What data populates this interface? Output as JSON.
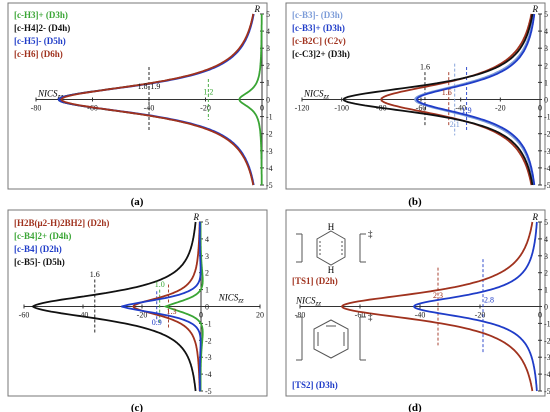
{
  "figure": {
    "panel_labels": [
      "(a)",
      "(b)",
      "(c)",
      "(d)"
    ]
  },
  "chart_data": [
    {
      "panel": "(a)",
      "type": "line",
      "xlabel": "NICSzz",
      "ylabel": "R",
      "xlim": [
        -80,
        0
      ],
      "ylim": [
        -5,
        5
      ],
      "x_ticks": [
        -80,
        -60,
        -40,
        -20,
        0
      ],
      "y_ticks": [
        -5,
        -4,
        -3,
        -2,
        -1,
        0,
        1,
        2,
        3,
        4,
        5
      ],
      "legend_position": "top-left",
      "series": [
        {
          "name": "[c-H3]+ (D3h)",
          "color": "#3aa535",
          "min_x": -8,
          "min_y": 0,
          "width": 0.55
        },
        {
          "name": "[c-H4]2- (D4h)",
          "color": "#111111",
          "min_x": -72,
          "min_y": 0,
          "width": 1.05
        },
        {
          "name": "[c-H5]- (D5h)",
          "color": "#1f3cc8",
          "min_x": -72,
          "min_y": 0,
          "width": 1.03
        },
        {
          "name": "[c-H6] (D6h)",
          "color": "#a0321e",
          "min_x": -71,
          "min_y": 0,
          "width": 1.07
        }
      ],
      "annotations": [
        {
          "text": "1.8-1.9",
          "x": -40,
          "y": 0.6,
          "color": "#111111"
        },
        {
          "text": "1.2",
          "x": -19,
          "y": 0.3,
          "color": "#3aa535"
        }
      ],
      "vlines": [
        {
          "x": -40,
          "y1": -1.9,
          "y2": 1.9,
          "color": "#111111"
        },
        {
          "x": -19,
          "y1": -1.2,
          "y2": 1.2,
          "color": "#3aa535"
        }
      ]
    },
    {
      "panel": "(b)",
      "type": "line",
      "xlabel": "NICSzz",
      "ylabel": "R",
      "xlim": [
        -120,
        0
      ],
      "ylim": [
        -5,
        5
      ],
      "x_ticks": [
        -120,
        -100,
        -80,
        -60,
        -40,
        -20,
        0
      ],
      "y_ticks": [
        -5,
        -4,
        -3,
        -2,
        -1,
        0,
        1,
        2,
        3,
        4,
        5
      ],
      "legend_position": "top-left",
      "series": [
        {
          "name": "[c-B3]- (D3h)",
          "color": "#7b9bd8",
          "min_x": -63,
          "min_y": 0,
          "width": 1.15
        },
        {
          "name": "[c-B3]+ (D3h)",
          "color": "#1f3cc8",
          "min_x": -62,
          "min_y": 0,
          "width": 1.1
        },
        {
          "name": "[c-B2C] (C2v)",
          "color": "#a0321e",
          "min_x": -80,
          "min_y": 0,
          "width": 1.2
        },
        {
          "name": "[c-C3]2+ (D3h)",
          "color": "#111111",
          "min_x": -99,
          "min_y": 0,
          "width": 1.0
        }
      ],
      "annotations": [
        {
          "text": "1.6",
          "x": -58,
          "y": 1.75,
          "color": "#111111"
        },
        {
          "text": "1.6",
          "x": -47,
          "y": 0.25,
          "color": "#a0321e"
        },
        {
          "text": "1.9",
          "x": -37,
          "y": -0.8,
          "color": "#1f3cc8"
        },
        {
          "text": "2.1",
          "x": -43,
          "y": -1.6,
          "color": "#7b9bd8"
        }
      ],
      "vlines": [
        {
          "x": -58,
          "y1": -1.6,
          "y2": 1.6,
          "color": "#111111"
        },
        {
          "x": -46,
          "y1": -1.6,
          "y2": 1.6,
          "color": "#a0321e"
        },
        {
          "x": -37,
          "y1": -1.9,
          "y2": 1.9,
          "color": "#1f3cc8"
        },
        {
          "x": -43,
          "y1": -2.1,
          "y2": 2.1,
          "color": "#7b9bd8"
        }
      ]
    },
    {
      "panel": "(c)",
      "type": "line",
      "xlabel": "NICSzz",
      "ylabel": "R",
      "xlim": [
        -60,
        20
      ],
      "ylim": [
        -5,
        5
      ],
      "x_ticks": [
        -60,
        -40,
        -20,
        0,
        20
      ],
      "y_ticks": [
        -5,
        -4,
        -3,
        -2,
        -1,
        0,
        1,
        2,
        3,
        4,
        5
      ],
      "legend_position": "top-left",
      "series": [
        {
          "name": "[H2B(μ2-H)2BH2] (D2h)",
          "color": "#a0321e",
          "min_x": -23,
          "min_y": 0,
          "width": 0.72,
          "tail": 1
        },
        {
          "name": "[c-B4]2+ (D4h)",
          "color": "#3aa535",
          "min_x": -12,
          "min_y": 0,
          "width": 0.62,
          "tail": 4
        },
        {
          "name": "[c-B4] (D2h)",
          "color": "#1f3cc8",
          "min_x": -27,
          "min_y": 0,
          "width": 0.66,
          "tail": 6
        },
        {
          "name": "[c-B5]- (D5h)",
          "color": "#111111",
          "min_x": -57,
          "min_y": 0,
          "width": 1.0,
          "tail": 3
        }
      ],
      "annotations": [
        {
          "text": "1.6",
          "x": -36,
          "y": 1.75,
          "color": "#111111"
        },
        {
          "text": "1.0",
          "x": -14,
          "y": 1.15,
          "color": "#3aa535"
        },
        {
          "text": "0.9",
          "x": -15,
          "y": -1.1,
          "color": "#1f3cc8"
        },
        {
          "text": "1.3",
          "x": -10,
          "y": -0.45,
          "color": "#a0321e"
        }
      ],
      "vlines": [
        {
          "x": -36,
          "y1": -1.6,
          "y2": 1.6,
          "color": "#111111"
        },
        {
          "x": -14,
          "y1": -1.0,
          "y2": 1.0,
          "color": "#3aa535"
        },
        {
          "x": -15,
          "y1": -0.9,
          "y2": 0.9,
          "color": "#1f3cc8"
        },
        {
          "x": -11,
          "y1": -1.3,
          "y2": 1.3,
          "color": "#a0321e"
        }
      ]
    },
    {
      "panel": "(d)",
      "type": "line",
      "xlabel": "NICSzz",
      "ylabel": "R",
      "xlim": [
        -80,
        0
      ],
      "ylim": [
        -5,
        5
      ],
      "x_ticks": [
        -80,
        -60,
        -40,
        -20,
        0
      ],
      "y_ticks": [
        -5,
        -4,
        -3,
        -2,
        -1,
        0,
        1,
        2,
        3,
        4,
        5
      ],
      "legend_position": "left",
      "series": [
        {
          "name": "[TS1] (D2h)",
          "color": "#a0321e",
          "min_x": -66,
          "min_y": 0,
          "width": 1.0
        },
        {
          "name": "[TS2] (D3h)",
          "color": "#1f3cc8",
          "min_x": -42,
          "min_y": 0,
          "width": 0.8
        }
      ],
      "annotations": [
        {
          "text": "2.3",
          "x": -34,
          "y": 0.5,
          "color": "#a0321e"
        },
        {
          "text": "2.8",
          "x": -17,
          "y": 0.25,
          "color": "#1f3cc8"
        }
      ],
      "vlines": [
        {
          "x": -34,
          "y1": -2.3,
          "y2": 2.3,
          "color": "#a0321e"
        },
        {
          "x": -19,
          "y1": -2.8,
          "y2": 2.8,
          "color": "#1f3cc8"
        }
      ],
      "structure_labels": [
        {
          "bracket_charge": "‡",
          "atoms": "H",
          "for": "[TS1] (D2h)"
        },
        {
          "bracket_charge": "‡",
          "for": "[TS2] (D3h)"
        }
      ]
    }
  ]
}
